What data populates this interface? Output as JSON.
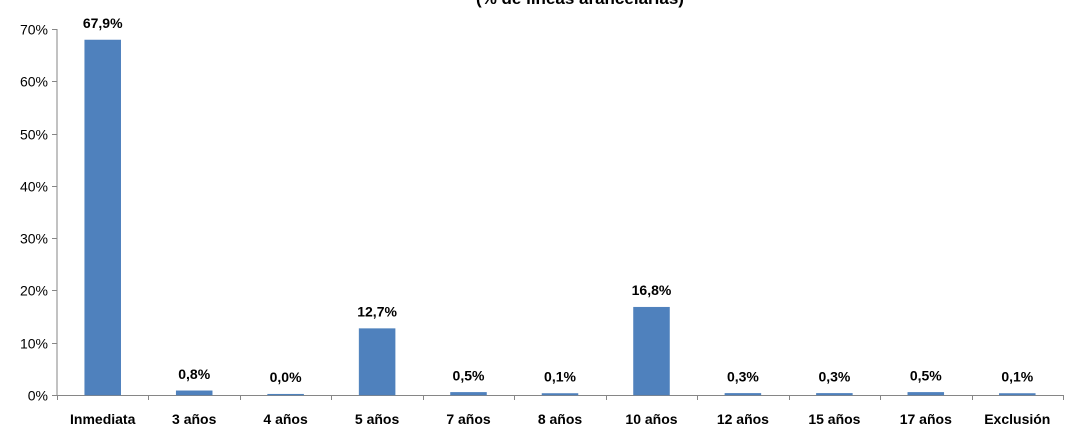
{
  "chart_data": {
    "type": "bar",
    "title": "(% de líneas arancelarias)",
    "categories": [
      "Inmediata",
      "3 años",
      "4 años",
      "5 años",
      "7 años",
      "8 años",
      "10 años",
      "12 años",
      "15 años",
      "17 años",
      "Exclusión"
    ],
    "values": [
      67.9,
      0.8,
      0.0,
      12.7,
      0.5,
      0.1,
      16.8,
      0.3,
      0.3,
      0.5,
      0.1
    ],
    "data_labels": [
      "67,9%",
      "0,8%",
      "0,0%",
      "12,7%",
      "0,5%",
      "0,1%",
      "16,8%",
      "0,3%",
      "0,3%",
      "0,5%",
      "0,1%"
    ],
    "ylim": [
      0,
      70
    ],
    "yticks": [
      0,
      10,
      20,
      30,
      40,
      50,
      60,
      70
    ],
    "ytick_labels": [
      "0%",
      "10%",
      "20%",
      "30%",
      "40%",
      "50%",
      "60%",
      "70%"
    ],
    "xlabel": "",
    "ylabel": "",
    "grid": false,
    "bar_color": "#4F81BD",
    "axis_color": "#868686"
  }
}
